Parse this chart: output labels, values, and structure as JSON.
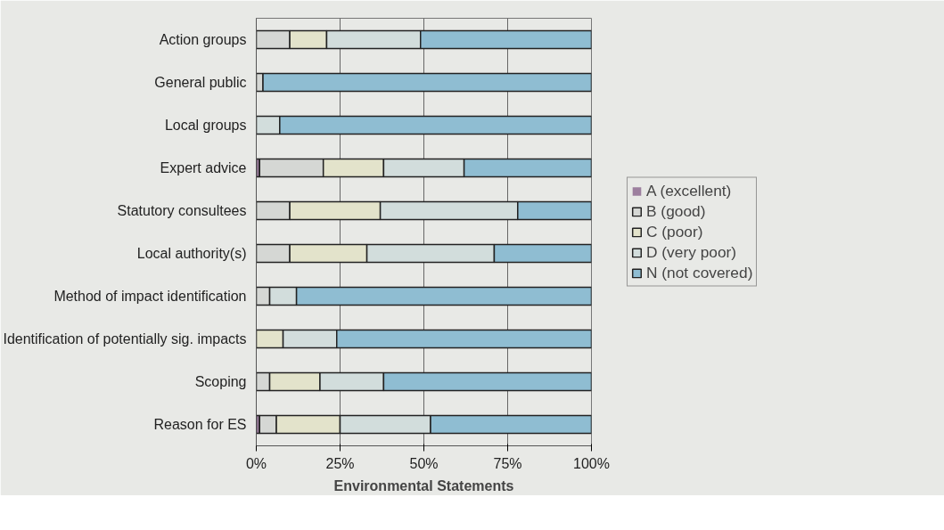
{
  "chart_data": {
    "type": "bar",
    "orientation": "horizontal",
    "stacked": true,
    "xlabel": "Environmental Statements",
    "categories": [
      "Action groups",
      "General public",
      "Local groups",
      "Expert advice",
      "Statutory consultees",
      "Local authority(s)",
      "Method of impact identification",
      "Identification of potentially sig. impacts",
      "Scoping",
      "Reason for ES"
    ],
    "series": [
      {
        "name": "A (excellent)",
        "color": "#9c7f9e",
        "values": [
          0,
          0,
          0,
          1,
          0,
          0,
          0,
          0,
          0,
          1
        ]
      },
      {
        "name": "B (good)",
        "color": "#d5d7d4",
        "values": [
          10,
          2,
          0,
          19,
          10,
          10,
          4,
          0,
          4,
          5
        ]
      },
      {
        "name": "C (poor)",
        "color": "#e3e3cb",
        "values": [
          11,
          0,
          0,
          18,
          27,
          23,
          0,
          8,
          15,
          19
        ]
      },
      {
        "name": "D (very poor)",
        "color": "#d2dddc",
        "values": [
          28,
          0,
          7,
          24,
          41,
          38,
          8,
          16,
          19,
          27
        ]
      },
      {
        "name": "N (not covered)",
        "color": "#8fbdd2",
        "values": [
          51,
          98,
          93,
          38,
          22,
          29,
          88,
          76,
          62,
          48
        ]
      }
    ],
    "xlim": [
      0,
      100
    ],
    "xticks": [
      {
        "value": 0,
        "label": "0%"
      },
      {
        "value": 25,
        "label": "25%"
      },
      {
        "value": 50,
        "label": "50%"
      },
      {
        "value": 75,
        "label": "75%"
      },
      {
        "value": 100,
        "label": "100%"
      }
    ],
    "grid": "x",
    "legend": "right"
  }
}
